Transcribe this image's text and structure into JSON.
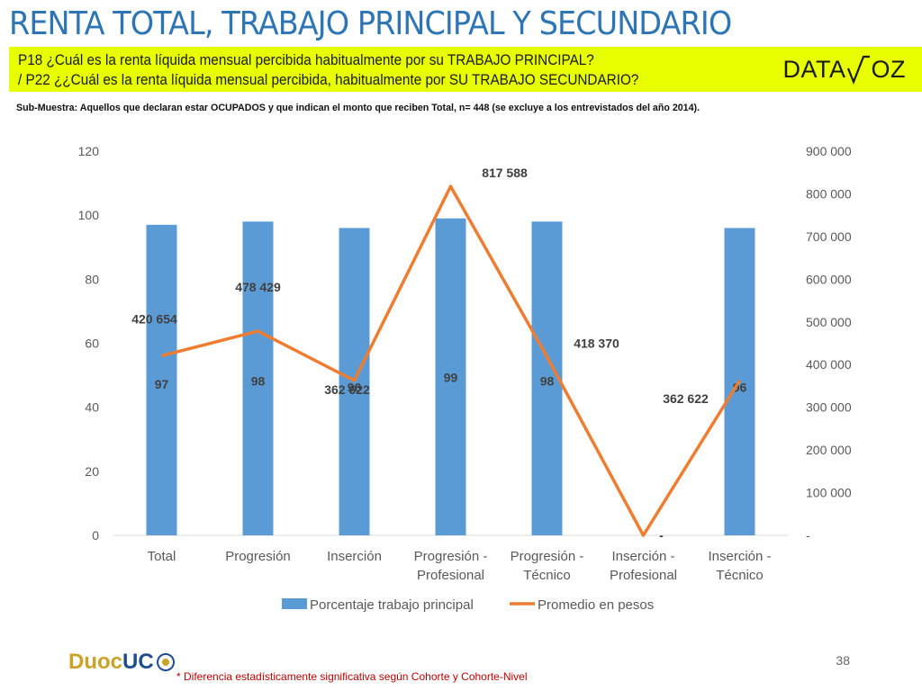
{
  "slide": {
    "title": "RENTA TOTAL, TRABAJO PRINCIPAL Y SECUNDARIO",
    "question_1": "P18 ¿Cuál es la renta líquida mensual percibida habitualmente por su TRABAJO PRINCIPAL?",
    "question_2": "/ P22 ¿¿Cuál es la  renta líquida mensual percibida, habitualmente por  SU TRABAJO SECUNDARIO?",
    "logo_left": "DATA",
    "logo_right": "OZ",
    "subsample": "Sub-Muestra: Aquellos que declaran estar OCUPADOS y que indican el monto que reciben Total, n= 448 (se excluye a los entrevistados del año 2014).",
    "footnote": "* Diferencia estadísticamente significativa según Cohorte y Cohorte-Nivel",
    "page_number": "38",
    "footer_logo_a": "Duoc",
    "footer_logo_b": "UC"
  },
  "chart_data": {
    "type": "bar",
    "categories": [
      [
        "Total"
      ],
      [
        "Progresión"
      ],
      [
        "Inserción"
      ],
      [
        "Progresión -",
        "Profesional"
      ],
      [
        "Progresión -",
        "Técnico"
      ],
      [
        "Inserción -",
        "Profesional"
      ],
      [
        "Inserción -",
        "Técnico"
      ]
    ],
    "series": [
      {
        "name": "Porcentaje trabajo principal",
        "type": "bar",
        "axis": "left",
        "color": "#5b9bd5",
        "values": [
          97,
          98,
          96,
          99,
          98,
          null,
          96
        ],
        "labels": [
          "97",
          "98",
          "96",
          "99",
          "98",
          "-",
          "96"
        ]
      },
      {
        "name": "Promedio en pesos",
        "type": "line",
        "axis": "right",
        "color": "#ed7d31",
        "values": [
          420654,
          478429,
          362622,
          817588,
          418370,
          0,
          362622
        ],
        "labels": [
          "420 654",
          "478 429",
          "362 622",
          "817 588",
          "418 370",
          "",
          "362 622"
        ]
      }
    ],
    "y_left": {
      "ylim": [
        0,
        120
      ],
      "ticks": [
        0,
        20,
        40,
        60,
        80,
        100,
        120
      ],
      "tick_labels": [
        "0",
        "20",
        "40",
        "60",
        "80",
        "100",
        "120"
      ]
    },
    "y_right": {
      "ylim": [
        0,
        900000
      ],
      "ticks": [
        0,
        100000,
        200000,
        300000,
        400000,
        500000,
        600000,
        700000,
        800000,
        900000
      ],
      "tick_labels": [
        "-",
        "100 000",
        "200 000",
        "300 000",
        "400 000",
        "500 000",
        "600 000",
        "700 000",
        "800 000",
        "900 000"
      ]
    },
    "grid": false,
    "legend": "bottom"
  }
}
